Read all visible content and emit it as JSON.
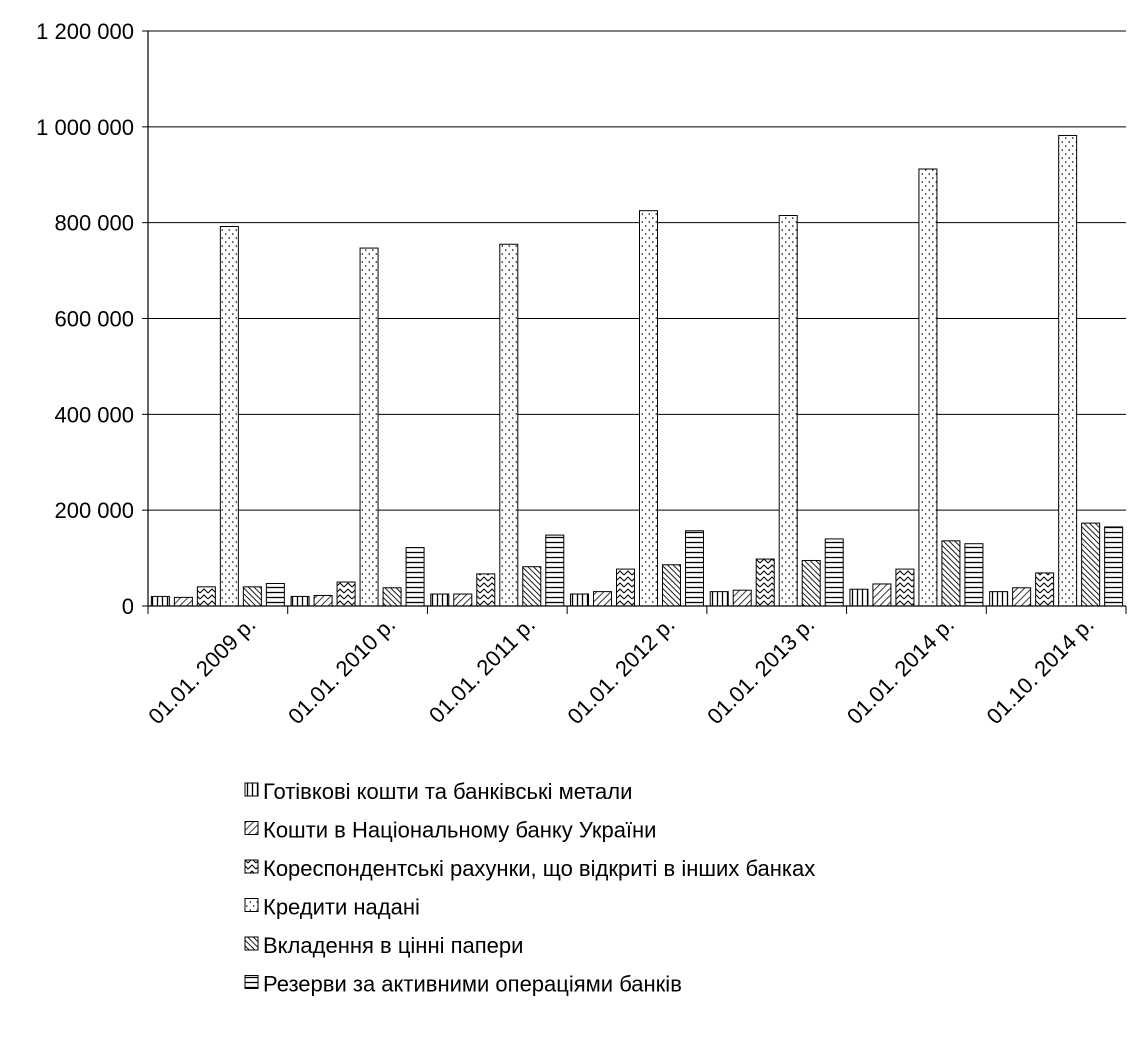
{
  "chart_data": {
    "type": "bar",
    "title": "",
    "xlabel": "",
    "ylabel": "",
    "ylim": [
      0,
      1200000
    ],
    "yticks": [
      0,
      200000,
      400000,
      600000,
      800000,
      1000000,
      1200000
    ],
    "ytick_labels": [
      "0",
      "200 000",
      "400 000",
      "600 000",
      "800 000",
      "1 000 000",
      "1 200 000"
    ],
    "grid": true,
    "legend_position": "bottom",
    "categories": [
      "01.01. 2009 р.",
      "01.01. 2010 р.",
      "01.01. 2011 р.",
      "01.01. 2012 р.",
      "01.01. 2013 р.",
      "01.01. 2014 р.",
      "01.10. 2014 р."
    ],
    "series": [
      {
        "name": "Готівкові кошти та банківські метали",
        "pattern": "vlines",
        "values": [
          20000,
          20000,
          25000,
          25000,
          30000,
          35000,
          30000
        ]
      },
      {
        "name": "Кошти в Національному банку України",
        "pattern": "diag",
        "values": [
          18000,
          22000,
          25000,
          30000,
          33000,
          46000,
          38000
        ]
      },
      {
        "name": "Кореспондентські рахунки, що відкриті в інших банках",
        "pattern": "zigzag",
        "values": [
          40000,
          50000,
          67000,
          77000,
          98000,
          77000,
          69000
        ]
      },
      {
        "name": "Кредити надані",
        "pattern": "dots",
        "values": [
          792000,
          747000,
          755000,
          825000,
          815000,
          912000,
          982000
        ]
      },
      {
        "name": "Вкладення в цінні папери",
        "pattern": "diagdense",
        "values": [
          40000,
          38000,
          82000,
          86000,
          95000,
          136000,
          173000
        ]
      },
      {
        "name": "Резерви за активними операціями банків",
        "pattern": "hlines",
        "values": [
          47000,
          122000,
          148000,
          157000,
          140000,
          130000,
          165000
        ]
      }
    ]
  }
}
